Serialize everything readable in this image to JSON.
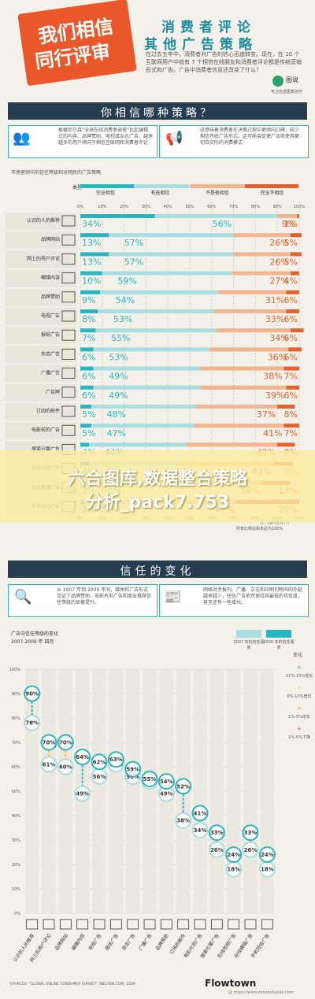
{
  "header": {
    "badge_line1": "我们相信",
    "badge_line2": "同行评审",
    "title_line1": "消费者评论",
    "title_line2": "其他广告策略",
    "intro": "在过去五年中，消费者对广告的信心迅速转变。现在，在 10 个互联网用户中就有 7 个相信在线朋友和消费者评论都是传统营销形式和广告。广告中消费者信息还改变了什么？",
    "logo": "图说",
    "logo_sub": "专注信息图表创作"
  },
  "section1": {
    "title": "你相信哪种策略？",
    "left_text": "根据尼尔森“全球在线消费者调查”比起编辑过的内容、品牌赞助、电视或杂志广告，越来越多的用户倾向于相信互联网和消费者评论",
    "right_text": "这意味着消费者在决策过程中更倾向口碑，较少相信传统广告形式。这可能会促使广告商使用更切合实际的消费模式",
    "chart_title": "市场营销中的信任等级和对网民的广告策略",
    "axis_label": "类型",
    "legend": [
      "完全相信",
      "有些相信",
      "不是很相信",
      "完全不相信"
    ],
    "ticks": [
      "0%",
      "10%",
      "20%",
      "30%",
      "40%",
      "50%",
      "60%",
      "70%",
      "80%",
      "90%",
      "100%"
    ],
    "footnote_line1": "注：因四舍五入，",
    "footnote_line2": "所有比例总和未必为100%"
  },
  "watermark": {
    "line1": "六合图库,数据整合策略",
    "line2": "分析_pack7.753"
  },
  "section2": {
    "title": "信任的变化",
    "left_text": "从 2007 年到 2009 年间，媒体和广告形式见证了品牌赞助、电影片前广告和朋友推荐信任等级的显著提升。",
    "right_text": "网络对手报刊、广播、杂志和印刷刊物间的外延越来越少，短信广告依然保持其最低的可信度，甚至还有一些增长。",
    "chart_title_line1": "广告中信任等级的变化",
    "chart_title_line2": "2007-2009 年 四月",
    "legend_title": "变化",
    "legend_2007": "2007 年的信任程度",
    "legend_2009": "2009 年的信任程度",
    "change_labels": [
      "11%-15%增长",
      "6%-10%增长",
      "1%-5%增长",
      "1%-5%下降"
    ],
    "source": "SOURCES: \"GLOBAL ONLINE CONSUMER SURVEY\", NIELSEN.COM, 2009",
    "brand": "Flowtown",
    "credit": "@ https://www.zaixianlianjie.com"
  },
  "colors": {
    "teal_dark": "#2ab6be",
    "teal_light": "#a9dde0",
    "orange_light": "#f2b58f",
    "orange_dark": "#e2612c",
    "navy": "#263c4f",
    "badge": "#e9572b"
  },
  "chart_data": [
    {
      "type": "bar",
      "orientation": "horizontal-stacked",
      "title": "市场营销中的信任等级和对网民的广告策略",
      "xlim": [
        0,
        100
      ],
      "legend_position": "top",
      "categories": [
        "认识的人的推荐",
        "品牌网站",
        "网上的用户评论",
        "编辑内容",
        "品牌赞助",
        "电视广告",
        "报纸广告",
        "杂志广告",
        "广播广告",
        "广告牌",
        "订阅的邮件",
        "电影前的广告",
        "搜索引擎广告",
        "在线视频广告",
        "在线横幅广告",
        "手机短信广告"
      ],
      "series": [
        {
          "name": "完全相信",
          "values": [
            34,
            13,
            13,
            10,
            9,
            8,
            7,
            6,
            6,
            6,
            5,
            5,
            4,
            4,
            3,
            2
          ]
        },
        {
          "name": "有些相信",
          "values": [
            56,
            57,
            57,
            59,
            54,
            53,
            55,
            53,
            49,
            49,
            48,
            47,
            44,
            41,
            30,
            22
          ]
        },
        {
          "name": "不是很相信",
          "values": [
            9,
            26,
            26,
            27,
            31,
            33,
            34,
            36,
            38,
            39,
            37,
            41,
            42,
            43,
            50,
            47
          ]
        },
        {
          "name": "完全不相信",
          "values": [
            1,
            5,
            5,
            4,
            6,
            6,
            6,
            6,
            7,
            6,
            8,
            7,
            8,
            9,
            13,
            29
          ]
        }
      ]
    },
    {
      "type": "scatter",
      "title": "广告中信任等级的变化",
      "subtitle": "2007-2009 年 四月",
      "ylim": [
        0,
        100
      ],
      "grid": true,
      "legend_position": "top-right",
      "categories": [
        "认识的人的推荐",
        "网上的用户评论",
        "品牌网站",
        "编辑内容",
        "电视广告",
        "报纸广告",
        "杂志广告",
        "广播广告",
        "品牌赞助",
        "订阅的邮件",
        "电影片前广告",
        "搜索引擎广告",
        "在线视频广告",
        "在线横幅广告",
        "手机短信广告"
      ],
      "series": [
        {
          "name": "2007 年的信任程度",
          "values": [
            78,
            61,
            60,
            49,
            56,
            61,
            56,
            54,
            49,
            38,
            34,
            26,
            18,
            26,
            18
          ]
        },
        {
          "name": "2009 年的信任程度",
          "values": [
            90,
            70,
            70,
            64,
            62,
            63,
            59,
            55,
            54,
            52,
            41,
            33,
            24,
            33,
            24
          ]
        }
      ]
    }
  ]
}
